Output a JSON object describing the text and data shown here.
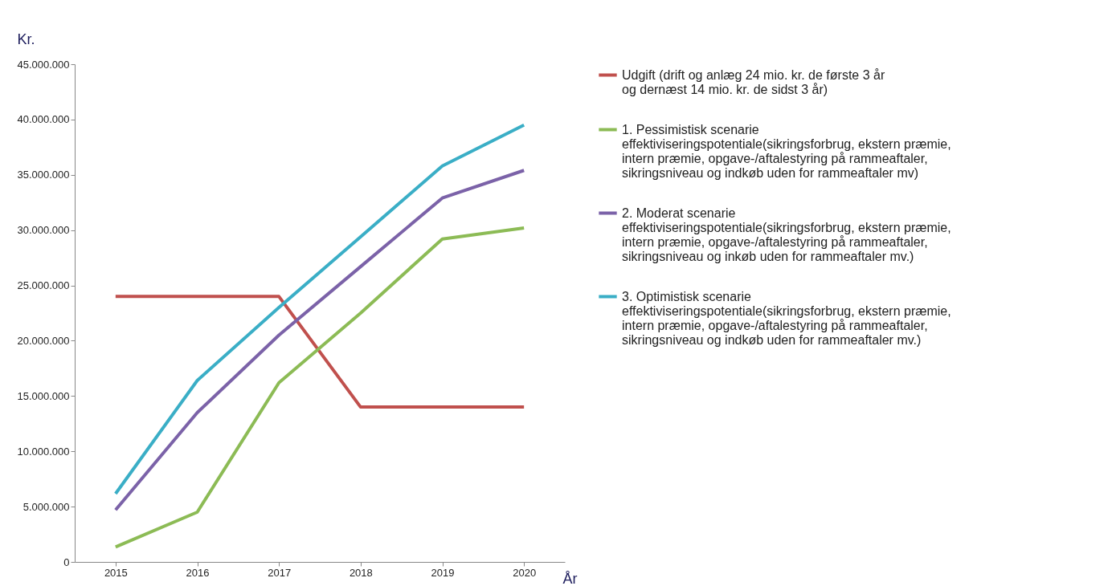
{
  "chart_data": {
    "type": "line",
    "ylabel": "Kr.",
    "xlabel": "År",
    "categories": [
      "2015",
      "2016",
      "2017",
      "2018",
      "2019",
      "2020"
    ],
    "ylim": [
      0,
      45000000
    ],
    "yticks": [
      {
        "value": 0,
        "label": "0"
      },
      {
        "value": 5000000,
        "label": "5.000.000"
      },
      {
        "value": 10000000,
        "label": "10.000.000"
      },
      {
        "value": 15000000,
        "label": "15.000.000"
      },
      {
        "value": 20000000,
        "label": "20.000.000"
      },
      {
        "value": 25000000,
        "label": "25.000.000"
      },
      {
        "value": 30000000,
        "label": "30.000.000"
      },
      {
        "value": 35000000,
        "label": "35.000.000"
      },
      {
        "value": 40000000,
        "label": "40.000.000"
      },
      {
        "value": 45000000,
        "label": "45.000.000"
      }
    ],
    "grid": false,
    "legend": "right",
    "marker": "none",
    "line_style": "solid",
    "series": [
      {
        "name": "Udgift (drift og anlæg 24 mio. kr. de første 3 år\nog dernæst 14 mio. kr. de sidst 3 år)",
        "color": "#c0504d",
        "values": [
          24000000,
          24000000,
          24000000,
          14000000,
          14000000,
          14000000
        ]
      },
      {
        "name": "1. Pessimistisk scenarie\neffektiviseringspotentiale(sikringsforbrug, ekstern præmie,\nintern præmie, opgave-/aftalestyring på rammeaftaler,\nsikringsniveau og indkøb uden for rammeaftaler mv)",
        "color": "#8cbb55",
        "values": [
          1350000,
          4500000,
          16200000,
          22500000,
          29200000,
          30200000
        ]
      },
      {
        "name": "2. Moderat scenarie\neffektiviseringspotentiale(sikringsforbrug, ekstern præmie,\nintern præmie, opgave-/aftalestyring på rammeaftaler,\nsikringsniveau og inkøb uden for rammeaftaler mv.)",
        "color": "#7b62a8",
        "values": [
          4700000,
          13500000,
          20500000,
          26700000,
          32900000,
          35400000
        ]
      },
      {
        "name": "3. Optimistisk scenarie\neffektiviseringspotentiale(sikringsforbrug, ekstern præmie,\nintern præmie, opgave-/aftalestyring på rammeaftaler,\nsikringsniveau og indkøb uden for rammeaftaler mv.)",
        "color": "#3aaec6",
        "values": [
          6170000,
          16400000,
          23000000,
          29400000,
          35800000,
          39500000
        ]
      }
    ]
  }
}
